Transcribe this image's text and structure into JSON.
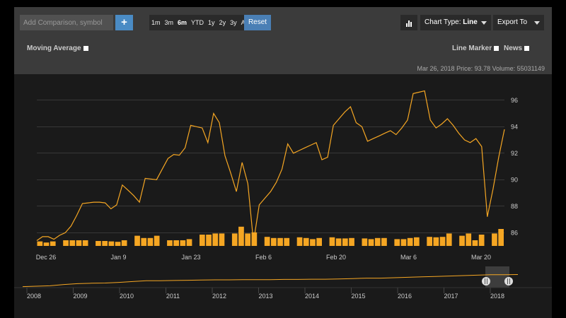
{
  "toolbar": {
    "comparison_placeholder": "Add Comparison, symbol",
    "add_icon": "plus-icon",
    "ranges": [
      "1m",
      "3m",
      "6m",
      "YTD",
      "1y",
      "2y",
      "3y",
      "All"
    ],
    "active_range": "6m",
    "reset_label": "Reset",
    "chart_icon": "bar-chart-icon",
    "chart_type_label": "Chart Type:",
    "chart_type_value": "Line",
    "export_label": "Export To"
  },
  "options": {
    "moving_average": "Moving Average",
    "line_marker": "Line Marker",
    "news": "News"
  },
  "status_line": "Mar 26, 2018 Price: 93.78 Volume: 55031149",
  "colors": {
    "accent": "#f5a623",
    "panel": "#3b3b3b",
    "background": "#1a1a1a"
  },
  "chart_data": {
    "type": "line",
    "x_labels": [
      "Dec 26",
      "Jan 9",
      "Jan 23",
      "Feb 6",
      "Feb 20",
      "Mar 6",
      "Mar 20"
    ],
    "y_ticks": [
      86,
      88,
      90,
      92,
      94,
      96
    ],
    "ylim": [
      85,
      97
    ],
    "grid": true,
    "price_series": [
      85.4,
      85.7,
      85.7,
      85.5,
      85.8,
      86.0,
      86.5,
      87.3,
      88.2,
      88.25,
      88.3,
      88.3,
      88.25,
      87.8,
      88.1,
      89.6,
      89.2,
      88.8,
      88.3,
      90.1,
      90.05,
      90.0,
      90.8,
      91.6,
      91.9,
      91.85,
      92.4,
      94.1,
      94.0,
      93.9,
      92.8,
      95.0,
      94.3,
      91.8,
      90.5,
      89.1,
      91.3,
      89.7,
      85.3,
      88.1,
      88.6,
      89.1,
      89.8,
      90.8,
      92.7,
      92.0,
      92.2,
      92.4,
      92.6,
      92.8,
      91.5,
      91.7,
      94.1,
      94.6,
      95.1,
      95.5,
      94.3,
      94.0,
      92.9,
      93.1,
      93.3,
      93.5,
      93.7,
      93.4,
      93.9,
      94.5,
      96.5,
      96.6,
      96.7,
      94.5,
      93.9,
      94.2,
      94.6,
      94.1,
      93.5,
      93.0,
      92.8,
      93.1,
      92.5,
      87.2,
      89.3,
      91.7,
      93.8
    ],
    "volume_series": [
      0.2,
      0.15,
      0.2,
      0,
      0.25,
      0.25,
      0.25,
      0.25,
      0,
      0.22,
      0.22,
      0.2,
      0.18,
      0.25,
      0,
      0.45,
      0.35,
      0.35,
      0.45,
      0,
      0.25,
      0.25,
      0.25,
      0.3,
      0,
      0.5,
      0.5,
      0.55,
      0.55,
      0,
      0.55,
      0.85,
      0.55,
      0.6,
      0,
      0.4,
      0.35,
      0.35,
      0.35,
      0,
      0.38,
      0.35,
      0.3,
      0.35,
      0,
      0.38,
      0.33,
      0.33,
      0.35,
      0,
      0.33,
      0.3,
      0.35,
      0.35,
      0,
      0.3,
      0.3,
      0.35,
      0.38,
      0,
      0.4,
      0.38,
      0.4,
      0.55,
      0,
      0.45,
      0.55,
      0.25,
      0.5,
      0,
      0.55,
      0.75
    ],
    "navigator": {
      "years": [
        "2008",
        "2009",
        "2010",
        "2011",
        "2012",
        "2013",
        "2014",
        "2015",
        "2016",
        "2017",
        "2018"
      ],
      "series": [
        0.62,
        0.6,
        0.58,
        0.52,
        0.48,
        0.46,
        0.45,
        0.42,
        0.38,
        0.34,
        0.34,
        0.33,
        0.32,
        0.31,
        0.3,
        0.3,
        0.29,
        0.29,
        0.29,
        0.28,
        0.28,
        0.27,
        0.27,
        0.26,
        0.24,
        0.22,
        0.22,
        0.2,
        0.18,
        0.16,
        0.14,
        0.12,
        0.1,
        0.08,
        0.06,
        0.06,
        0.05
      ]
    }
  }
}
